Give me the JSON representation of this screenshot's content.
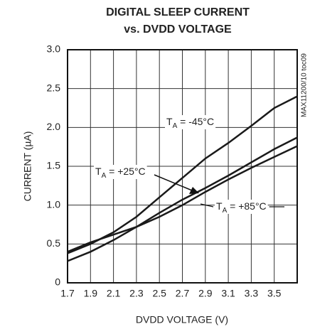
{
  "chart_data": {
    "type": "line",
    "title": [
      "DIGITAL SLEEP CURRENT",
      "vs. DVDD VOLTAGE"
    ],
    "x_label": "DVDD VOLTAGE (V)",
    "y_label": "CURRENT (µA)",
    "side_note": "MAX11200/10 toc09",
    "x": [
      1.7,
      1.9,
      2.1,
      2.3,
      2.5,
      2.7,
      2.9,
      3.1,
      3.3,
      3.5,
      3.7
    ],
    "series": [
      {
        "name": "TA = -45°C",
        "color": "#1a1a1a",
        "values": [
          0.38,
          0.5,
          0.65,
          0.85,
          1.1,
          1.35,
          1.6,
          1.8,
          2.02,
          2.25,
          2.4
        ]
      },
      {
        "name": "TA = +25°C",
        "color": "#1a1a1a",
        "values": [
          0.28,
          0.4,
          0.55,
          0.72,
          0.9,
          1.07,
          1.22,
          1.38,
          1.55,
          1.72,
          1.87
        ]
      },
      {
        "name": "TA = +85°C",
        "color": "#1a1a1a",
        "values": [
          0.4,
          0.52,
          0.62,
          0.72,
          0.85,
          1.0,
          1.17,
          1.33,
          1.48,
          1.62,
          1.76
        ]
      }
    ],
    "xlim": [
      1.7,
      3.7
    ],
    "xticks": [
      1.7,
      1.9,
      2.1,
      2.3,
      2.5,
      2.7,
      2.9,
      3.1,
      3.3,
      3.5
    ],
    "ylim": [
      0,
      3
    ],
    "yticks": [
      0,
      0.5,
      {
        "value": 1,
        "label": "1.0"
      },
      1.5,
      {
        "value": 2,
        "label": "2.0"
      },
      2.5,
      {
        "value": 3,
        "label": "3.0"
      }
    ],
    "grid": true
  }
}
